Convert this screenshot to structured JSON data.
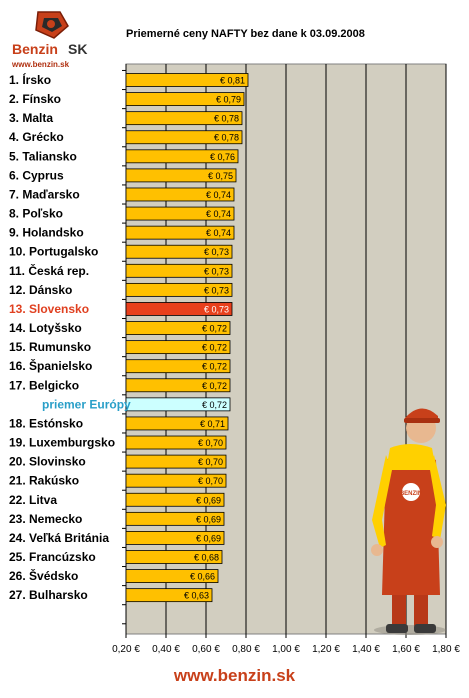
{
  "logo": {
    "brand": "Benzin",
    "brand_suffix": "SK",
    "url": "www.benzin.sk"
  },
  "footer": {
    "url": "www.benzin.sk"
  },
  "colors": {
    "plot_bg": "#d2cec0",
    "bar": "#ffc000",
    "highlight": "#e8401c",
    "highlight_label": "#e04020",
    "average_bar": "#ccffff",
    "average_label": "#2a9fc8"
  },
  "chart_data": {
    "type": "bar",
    "orientation": "horizontal",
    "title": "Priemerné ceny NAFTY bez dane k 03.09.2008",
    "categories": [
      "1. Írsko",
      "2. Fínsko",
      "3. Malta",
      "4. Grécko",
      "5. Taliansko",
      "6. Cyprus",
      "7. Maďarsko",
      "8. Poľsko",
      "9. Holandsko",
      "10. Portugalsko",
      "11. Česká rep.",
      "12. Dánsko",
      "13. Slovensko",
      "14. Lotyšsko",
      "15. Rumunsko",
      "16. Španielsko",
      "17. Belgicko",
      "priemer Európy",
      "18. Estónsko",
      "19. Luxemburgsko",
      "20. Slovinsko",
      "21. Rakúsko",
      "22. Litva",
      "23. Nemecko",
      "24. Veľká Británia",
      "25. Francúzsko",
      "26. Švédsko",
      "27. Bulharsko"
    ],
    "values": [
      0.81,
      0.79,
      0.78,
      0.78,
      0.76,
      0.75,
      0.74,
      0.74,
      0.74,
      0.73,
      0.73,
      0.73,
      0.73,
      0.72,
      0.72,
      0.72,
      0.72,
      0.72,
      0.71,
      0.7,
      0.7,
      0.7,
      0.69,
      0.69,
      0.69,
      0.68,
      0.66,
      0.63
    ],
    "value_labels": [
      "€ 0,81",
      "€ 0,79",
      "€ 0,78",
      "€ 0,78",
      "€ 0,76",
      "€ 0,75",
      "€ 0,74",
      "€ 0,74",
      "€ 0,74",
      "€ 0,73",
      "€ 0,73",
      "€ 0,73",
      "€ 0,73",
      "€ 0,72",
      "€ 0,72",
      "€ 0,72",
      "€ 0,72",
      "€ 0,72",
      "€ 0,71",
      "€ 0,70",
      "€ 0,70",
      "€ 0,70",
      "€ 0,69",
      "€ 0,69",
      "€ 0,69",
      "€ 0,68",
      "€ 0,66",
      "€ 0,63"
    ],
    "highlight": "13. Slovensko",
    "average": "priemer Európy",
    "xlim": [
      0.2,
      1.8
    ],
    "xticks": [
      0.2,
      0.4,
      0.6,
      0.8,
      1.0,
      1.2,
      1.4,
      1.6,
      1.8
    ],
    "xtick_labels": [
      "0,20 €",
      "0,40 €",
      "0,60 €",
      "0,80 €",
      "1,00 €",
      "1,20 €",
      "1,40 €",
      "1,60 €",
      "1,80 €"
    ],
    "grid": "vertical"
  }
}
